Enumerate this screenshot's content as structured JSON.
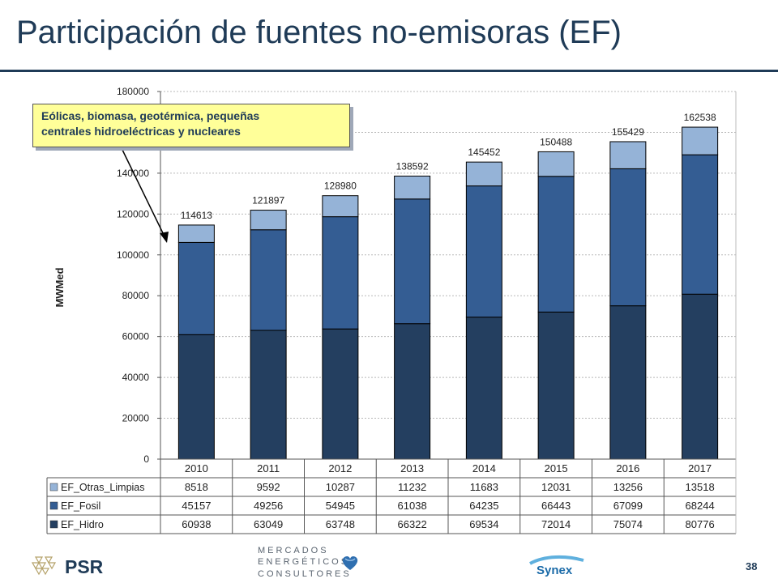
{
  "slide": {
    "title": "Participación de fuentes no-emisoras (EF)",
    "callout_line1": "Eólicas, biomasa, geotérmica, pequeñas",
    "callout_line2": "centrales hidroeléctricas y nucleares",
    "page_number": "38"
  },
  "logos": {
    "psr": "PSR",
    "me_line1": "MERCADOS",
    "me_line2": "ENERGÉTICOS",
    "me_line3": "CONSULTORES",
    "synex": "Synex"
  },
  "colors": {
    "hidro": "#243f60",
    "fosil": "#345d93",
    "otras": "#95b3d7",
    "title": "#1f3b57",
    "callout_bg": "#ffff99"
  },
  "chart_data": {
    "type": "bar",
    "stacked": true,
    "categories": [
      "2010",
      "2011",
      "2012",
      "2013",
      "2014",
      "2015",
      "2016",
      "2017"
    ],
    "ylabel": "MWMed",
    "ylim": [
      0,
      180000
    ],
    "yticks": [
      0,
      20000,
      40000,
      60000,
      80000,
      100000,
      120000,
      140000,
      160000,
      180000
    ],
    "grid": true,
    "series": [
      {
        "name": "EF_Hidro",
        "color": "#243f60",
        "values": [
          60938,
          63049,
          63748,
          66322,
          69534,
          72014,
          75074,
          80776
        ]
      },
      {
        "name": "EF_Fosil",
        "color": "#345d93",
        "values": [
          45157,
          49256,
          54945,
          61038,
          64235,
          66443,
          67099,
          68244
        ]
      },
      {
        "name": "EF_Otras_Limpias",
        "color": "#95b3d7",
        "values": [
          8518,
          9592,
          10287,
          11232,
          11683,
          12031,
          13256,
          13518
        ]
      }
    ],
    "totals": [
      114613,
      121897,
      128980,
      138592,
      145452,
      150488,
      155429,
      162538
    ],
    "table_row_order": [
      "EF_Otras_Limpias",
      "EF_Fosil",
      "EF_Hidro"
    ]
  }
}
